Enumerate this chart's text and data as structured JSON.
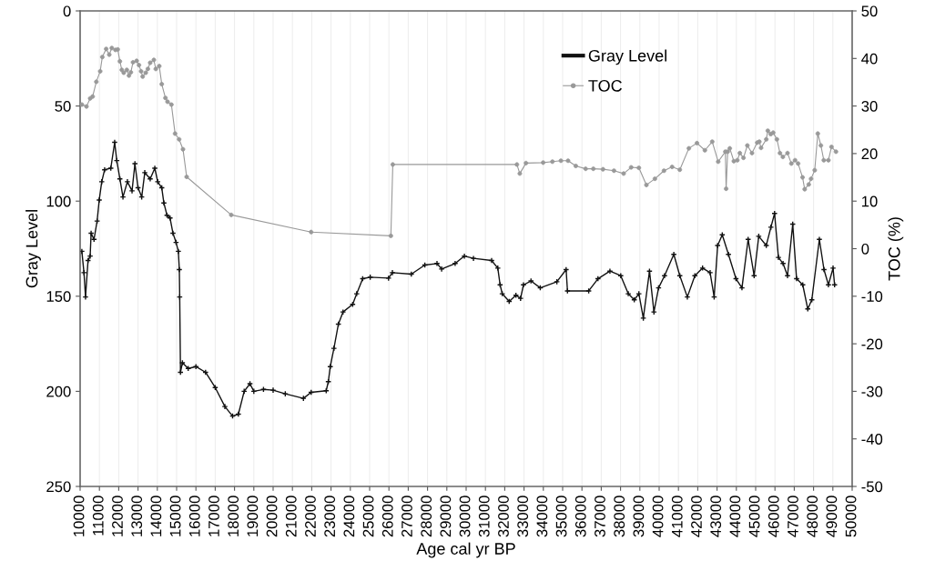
{
  "chart_data": {
    "type": "line",
    "xlabel": "Age cal yr BP",
    "ylabel": "Gray Level",
    "y2label": "TOC (%)",
    "xlim": [
      10000,
      50000
    ],
    "xticks": [
      10000,
      11000,
      12000,
      13000,
      14000,
      15000,
      16000,
      17000,
      18000,
      19000,
      20000,
      21000,
      22000,
      23000,
      24000,
      25000,
      26000,
      27000,
      28000,
      29000,
      30000,
      31000,
      32000,
      33000,
      34000,
      35000,
      36000,
      37000,
      38000,
      39000,
      40000,
      41000,
      42000,
      43000,
      44000,
      45000,
      46000,
      47000,
      48000,
      49000,
      50000
    ],
    "ylim": [
      250,
      0
    ],
    "yticks": [
      0,
      50,
      100,
      150,
      200,
      250
    ],
    "y2lim": [
      -50,
      50
    ],
    "y2ticks": [
      -50,
      -40,
      -30,
      -20,
      -10,
      0,
      10,
      20,
      30,
      40,
      50
    ],
    "grid": "x",
    "legend": "top right",
    "line_style": "solid",
    "series": [
      {
        "name": "Gray Level",
        "color": "#111111",
        "marker": "cross",
        "axis": "y",
        "x": [
          10090,
          10200,
          10280,
          10410,
          10520,
          10570,
          10720,
          10880,
          10990,
          11120,
          11270,
          11590,
          11790,
          11900,
          12060,
          12220,
          12450,
          12690,
          12840,
          13000,
          13190,
          13350,
          13630,
          13870,
          14020,
          14230,
          14340,
          14500,
          14660,
          14810,
          14970,
          15090,
          15140,
          15160,
          15200,
          15300,
          15600,
          16000,
          16500,
          17000,
          17500,
          17900,
          18200,
          18500,
          18800,
          19000,
          19500,
          20000,
          20630,
          21570,
          21970,
          22750,
          22860,
          22960,
          23150,
          23380,
          23620,
          24120,
          24330,
          24640,
          25030,
          25980,
          26180,
          27160,
          27860,
          28490,
          28730,
          29430,
          29910,
          30380,
          31320,
          31640,
          31760,
          31870,
          32230,
          32580,
          32820,
          32970,
          33360,
          33840,
          34700,
          35180,
          35250,
          36350,
          36830,
          37450,
          38010,
          38400,
          38710,
          38950,
          39180,
          39500,
          39730,
          39970,
          40280,
          40760,
          41070,
          41460,
          41850,
          42250,
          42640,
          42850,
          43030,
          43270,
          43590,
          43980,
          44290,
          44610,
          44920,
          45160,
          45550,
          45790,
          45980,
          46180,
          46420,
          46650,
          46920,
          47120,
          47440,
          47700,
          47910,
          48300,
          48540,
          48770,
          49010,
          49090
        ],
        "values": [
          126.4,
          137.6,
          150.4,
          131.2,
          128.9,
          116.9,
          120.1,
          110.5,
          99.4,
          89.8,
          83.5,
          82.7,
          69.1,
          78.7,
          88.3,
          97.8,
          89.8,
          94.6,
          80.3,
          93.0,
          97.8,
          85.0,
          88.3,
          82.7,
          89.8,
          93.0,
          101.0,
          107.4,
          108.9,
          116.9,
          121.7,
          126.4,
          136.0,
          150.4,
          190,
          185,
          188,
          187,
          190,
          198,
          208,
          213,
          212,
          200,
          196,
          200,
          199,
          199.4,
          201.3,
          203.7,
          200.5,
          199.7,
          194.9,
          187.0,
          177.4,
          164.7,
          158.3,
          154.3,
          148.7,
          140.8,
          140.0,
          140.5,
          137.6,
          138.4,
          133.6,
          132.8,
          135.7,
          132.8,
          128.9,
          130.1,
          131.2,
          135.2,
          144.0,
          148.7,
          152.7,
          149.5,
          151.1,
          144.0,
          142.0,
          145.6,
          142.4,
          136.0,
          147.2,
          147.2,
          140.8,
          136.8,
          139.2,
          148.7,
          151.9,
          148.7,
          161.5,
          136.8,
          158.3,
          145.6,
          139.2,
          128.0,
          139.2,
          150.4,
          139.2,
          135.2,
          137.6,
          150.4,
          123.3,
          117.7,
          128.0,
          140.8,
          145.6,
          120.1,
          139.2,
          118.5,
          123.3,
          113.7,
          106.5,
          129.6,
          132.8,
          139.2,
          112.1,
          140.8,
          144.0,
          156.7,
          151.9,
          120.1,
          136.0,
          144.0,
          135.2,
          144.0
        ]
      },
      {
        "name": "TOC",
        "color": "#999999",
        "marker": "circle",
        "axis": "y2",
        "x": [
          10090,
          10330,
          10520,
          10650,
          10840,
          11040,
          11150,
          11350,
          11510,
          11640,
          11830,
          11950,
          12060,
          12160,
          12260,
          12420,
          12530,
          12630,
          12740,
          12930,
          13050,
          13160,
          13240,
          13400,
          13510,
          13630,
          13820,
          13920,
          14100,
          14230,
          14420,
          14530,
          14730,
          14920,
          15130,
          15330,
          15520,
          17830,
          21970,
          26100,
          26200,
          32630,
          32780,
          33100,
          33990,
          34470,
          34910,
          35280,
          35680,
          36190,
          36590,
          37090,
          37660,
          38160,
          38550,
          38950,
          39340,
          39780,
          40250,
          40670,
          41070,
          41540,
          41960,
          42370,
          42750,
          43060,
          43430,
          43470,
          43550,
          43660,
          43870,
          44050,
          44180,
          44370,
          44570,
          44810,
          45080,
          45190,
          45280,
          45550,
          45630,
          45780,
          45910,
          46100,
          46260,
          46410,
          46650,
          46850,
          47040,
          47200,
          47430,
          47540,
          47750,
          47870,
          48060,
          48220,
          48380,
          48530,
          48770,
          48930,
          49160
        ],
        "values": [
          30.3,
          29.9,
          31.6,
          32.0,
          35.1,
          37.3,
          40.3,
          42.0,
          40.8,
          42.2,
          41.8,
          41.9,
          39.4,
          37.6,
          37.0,
          37.6,
          36.4,
          37.1,
          39.2,
          39.5,
          38.6,
          37.3,
          36.2,
          37.0,
          37.8,
          39.1,
          39.7,
          37.8,
          38.4,
          34.6,
          31.7,
          30.9,
          30.3,
          24.2,
          23.0,
          20.9,
          15.1,
          7.1,
          3.5,
          2.7,
          17.7,
          17.7,
          15.8,
          18.0,
          18.1,
          18.3,
          18.5,
          18.5,
          17.4,
          16.8,
          16.8,
          16.7,
          16.4,
          15.8,
          17.1,
          17.0,
          13.4,
          14.7,
          16.4,
          17.2,
          16.6,
          21.1,
          22.2,
          20.7,
          22.5,
          18.3,
          20.4,
          12.6,
          20.4,
          21.1,
          18.4,
          18.6,
          20.1,
          19.1,
          21.7,
          20.1,
          22.3,
          22.5,
          21.2,
          23.0,
          24.8,
          24.1,
          24.4,
          23.0,
          20.1,
          19.3,
          20.1,
          17.9,
          18.6,
          17.9,
          15.0,
          12.5,
          13.5,
          14.7,
          16.5,
          24.2,
          21.7,
          18.6,
          18.6,
          21.4,
          20.4
        ]
      }
    ]
  }
}
